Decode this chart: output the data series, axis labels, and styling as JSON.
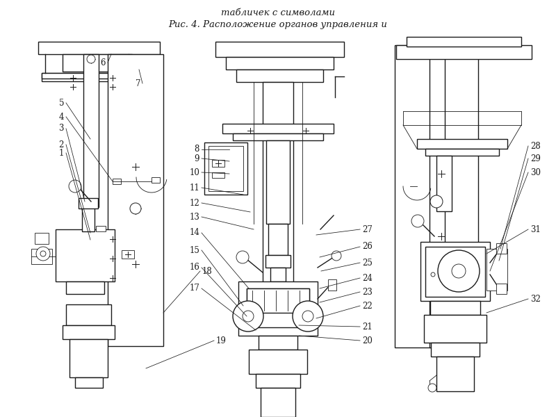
{
  "title_line1": "Рис. 4. Расположение органов управления и",
  "title_line2": "табличек с символами",
  "bg_color": "#ffffff",
  "line_color": "#1a1a1a",
  "title_fontsize": 9.5,
  "fig_width": 8.0,
  "fig_height": 6.0,
  "dpi": 100
}
